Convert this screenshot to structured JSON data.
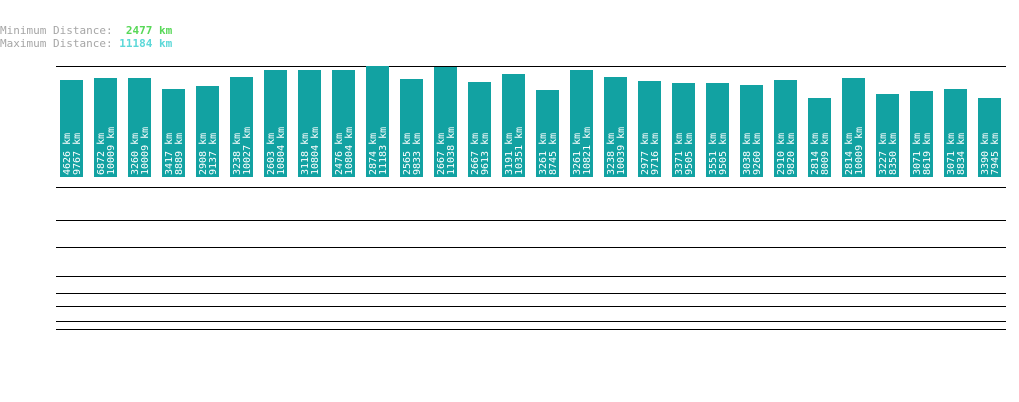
{
  "legend": {
    "min_label": "Minimum Distance:",
    "min_value": "2477 km",
    "max_label": "Maximum Distance:",
    "max_value": "11184 km"
  },
  "chart_data": {
    "type": "bar",
    "ylim": [
      0,
      11184
    ],
    "unit": "km",
    "series": [
      {
        "values": [
          9767,
          10009,
          10009,
          8889,
          9137,
          10027,
          10804,
          10804,
          10804,
          11183,
          9833,
          11038,
          9613,
          10351,
          8745,
          10821,
          10039,
          9716,
          9505,
          9505,
          9260,
          9820,
          8009,
          10009,
          8350,
          8619,
          8834,
          7945
        ]
      },
      {
        "values": [
          4626,
          6872,
          3260,
          3417,
          2908,
          3238,
          2603,
          3118,
          2476,
          2874,
          2565,
          2667,
          2667,
          3191,
          3261,
          3261,
          3238,
          2977,
          3371,
          3551,
          3038,
          2910,
          2814,
          2814,
          3227,
          3071,
          3071,
          3390
        ]
      }
    ],
    "grid": true,
    "colors": {
      "bar": "#12a2a2",
      "label": "#ffffff",
      "legend_text": "#a6a6a6",
      "min_value": "#58d858",
      "max_value": "#5cd8d8"
    }
  }
}
